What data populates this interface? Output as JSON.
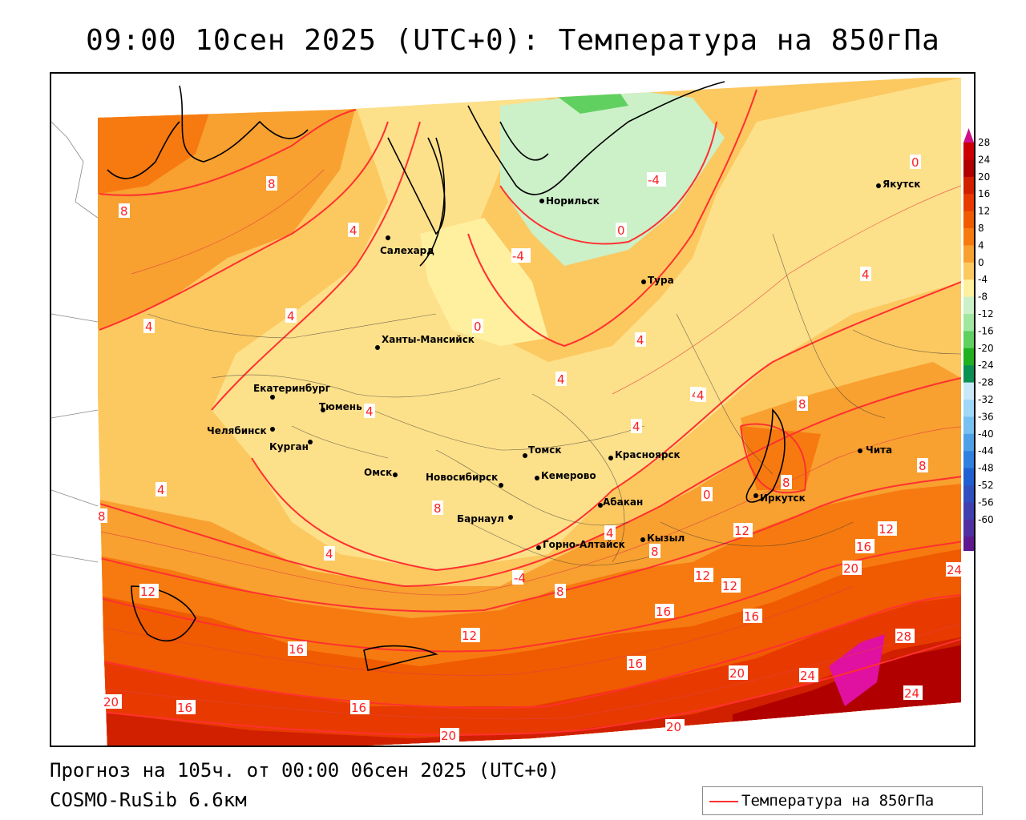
{
  "header": {
    "title": "09:00 10сен 2025 (UTC+0): Температура на 850гПа"
  },
  "footer": {
    "forecast": "Прогноз на 105ч. от 00:00 06сен 2025 (UTC+0)",
    "model": "COSMO-RuSib 6.6км"
  },
  "legend": {
    "label": "Температура на 850гПа",
    "line_color": "#ff3030"
  },
  "colorbar": {
    "ticks": [
      "28",
      "24",
      "20",
      "16",
      "12",
      "8",
      "4",
      "0",
      "-4",
      "-8",
      "-12",
      "-16",
      "-20",
      "-24",
      "-28",
      "-32",
      "-36",
      "-40",
      "-44",
      "-48",
      "-52",
      "-56",
      "-60"
    ],
    "colors": [
      "#cc0000",
      "#b00000",
      "#d02000",
      "#e83a00",
      "#f05a00",
      "#f67a10",
      "#f8a030",
      "#fcc860",
      "#fff0a0",
      "#ccf0c8",
      "#a0e8a0",
      "#60d060",
      "#20b020",
      "#0a9050",
      "#c8e8f8",
      "#a0d8f8",
      "#78c0f0",
      "#50a0e8",
      "#3080e0",
      "#2060d0",
      "#3050c0",
      "#4040b0",
      "#5030a0",
      "#601890"
    ],
    "top_arrow_color": "#d0108a",
    "bottom_arrow_color": "#8030c0"
  },
  "cities": [
    {
      "name": "Норильск"
    },
    {
      "name": "Якутск"
    },
    {
      "name": "Салехард"
    },
    {
      "name": "Тура"
    },
    {
      "name": "Ханты-Мансийск"
    },
    {
      "name": "Екатеринбург"
    },
    {
      "name": "Тюмень"
    },
    {
      "name": "Челябинск"
    },
    {
      "name": "Курган"
    },
    {
      "name": "Омск"
    },
    {
      "name": "Новосибирск"
    },
    {
      "name": "Томск"
    },
    {
      "name": "Кемерово"
    },
    {
      "name": "Красноярск"
    },
    {
      "name": "Абакан"
    },
    {
      "name": "Барнаул"
    },
    {
      "name": "Горно-Алтайск"
    },
    {
      "name": "Кызыл"
    },
    {
      "name": "Иркутск"
    },
    {
      "name": "Чита"
    }
  ],
  "isolines": [
    "8",
    "8",
    "4",
    "4",
    "4",
    "0",
    "-4",
    "-4",
    "0",
    "0",
    "4",
    "4",
    "4",
    "4",
    "4",
    "4",
    "4",
    "4",
    "8",
    "8",
    "8",
    "8",
    "8",
    "8",
    "12",
    "12",
    "12",
    "16",
    "12",
    "12",
    "16",
    "16",
    "12",
    "16",
    "20",
    "20",
    "16",
    "16",
    "20",
    "24",
    "24",
    "28",
    "24",
    "20",
    "4",
    "4",
    "0",
    "-4",
    "16",
    "20",
    "8"
  ]
}
